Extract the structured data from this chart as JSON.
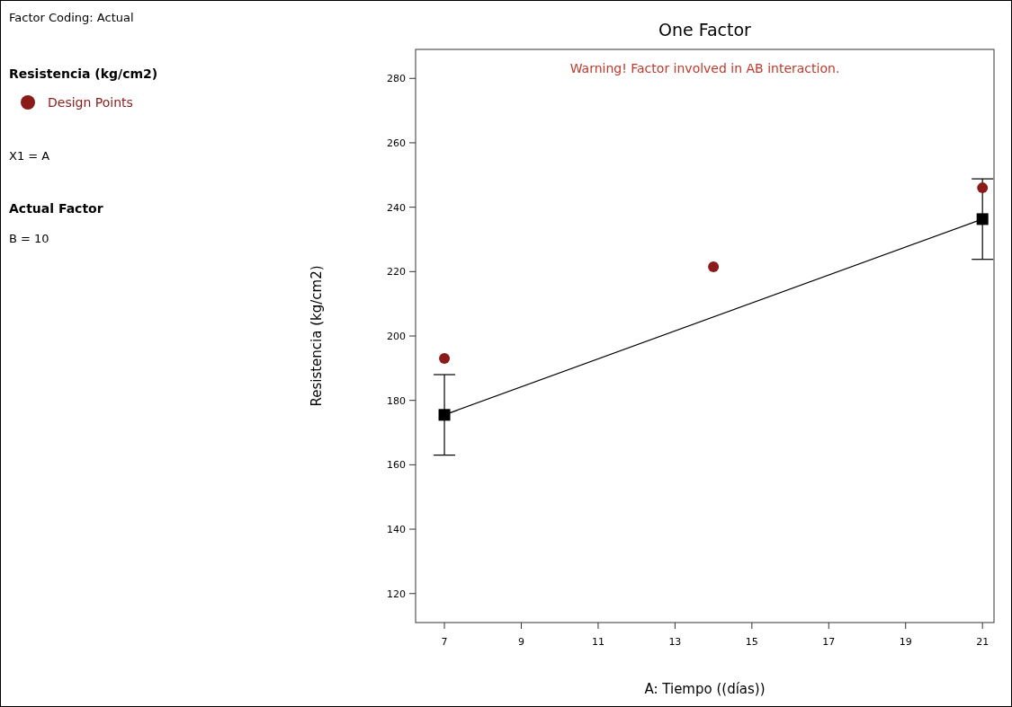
{
  "chart_data": {
    "type": "line",
    "title": "One Factor",
    "xlabel": "A: Tiempo ((días))",
    "ylabel": "Resistencia (kg/cm2)",
    "legend_title": "Resistencia (kg/cm2)",
    "legend": "left",
    "annotations": [
      "Warning! Factor involved in AB interaction.",
      "Factor Coding: Actual",
      "X1 = A",
      "Actual Factor",
      "B = 10"
    ],
    "xlim": [
      6.25,
      21.3
    ],
    "xticks": [
      7,
      9,
      11,
      13,
      15,
      17,
      19,
      21
    ],
    "ylim": [
      111,
      289
    ],
    "yticks": [
      120,
      140,
      160,
      180,
      200,
      220,
      240,
      260,
      280
    ],
    "grid": false,
    "series": [
      {
        "color": "#000000",
        "x": [
          7,
          21
        ],
        "values": [
          175.5,
          236.3
        ],
        "errors": [
          12.5,
          12.5
        ],
        "marker": "square"
      },
      {
        "type": "scatter",
        "name": "Design Points",
        "color": "#8b1a1a",
        "x": [
          7,
          14,
          21
        ],
        "values": [
          193,
          221.5,
          246
        ],
        "marker": "circle"
      }
    ]
  }
}
